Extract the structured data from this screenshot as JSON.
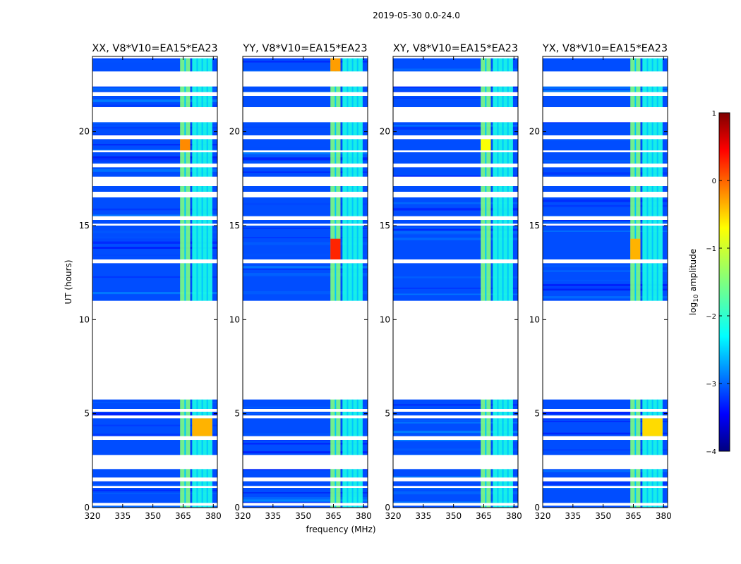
{
  "suptitle": "2019-05-30 0.0-24.0",
  "colors": {
    "background": "#ffffff",
    "axis": "#000000",
    "gap": "#ffffff"
  },
  "chart_data": {
    "type": "heatmap",
    "xlabel": "frequency (MHz)",
    "ylabel": "UT (hours)",
    "xlim": [
      320,
      382
    ],
    "ylim": [
      0,
      24
    ],
    "xticks": [
      320,
      335,
      350,
      365,
      380
    ],
    "yticks": [
      0,
      5,
      10,
      15,
      20
    ],
    "colorbar": {
      "label": "log",
      "label_sub": "10",
      "label_rest": " amplitude",
      "range": [
        -4,
        1
      ],
      "ticks": [
        1,
        0,
        -1,
        -2,
        -3,
        -4
      ],
      "tick_labels": [
        "1",
        "0",
        "−1",
        "−2",
        "−3",
        "−4"
      ],
      "colormap": "jet"
    },
    "data_gaps_ut": [
      [
        23.9,
        24.0
      ],
      [
        22.4,
        23.2
      ],
      [
        21.9,
        22.1
      ],
      [
        20.5,
        21.3
      ],
      [
        19.6,
        19.8
      ],
      [
        18.9,
        19.0
      ],
      [
        18.1,
        18.3
      ],
      [
        17.1,
        17.6
      ],
      [
        16.5,
        16.8
      ],
      [
        15.3,
        15.5
      ],
      [
        15.0,
        15.1
      ],
      [
        13.0,
        13.2
      ],
      [
        11.0,
        5.75
      ],
      [
        5.1,
        5.25
      ],
      [
        4.75,
        4.9
      ],
      [
        3.6,
        3.8
      ],
      [
        2.8,
        2.05
      ],
      [
        1.4,
        1.6
      ],
      [
        1.05,
        1.15
      ],
      [
        0.1,
        0.25
      ]
    ],
    "rfi_bands_mhz": [
      {
        "start": 363.5,
        "end": 368.5,
        "level": -1.5
      },
      {
        "start": 369.5,
        "end": 379.5,
        "level": -2.0
      }
    ],
    "background_level": -3.0,
    "panels": [
      {
        "title": "XX, V8*V10=EA15*EA23",
        "hot_spots": [
          {
            "f0": 363.5,
            "f1": 368.5,
            "t0": 18.9,
            "t1": 19.6,
            "level": -0.3
          },
          {
            "f0": 369.5,
            "f1": 379.5,
            "t0": 3.8,
            "t1": 4.75,
            "level": -0.5
          }
        ]
      },
      {
        "title": "YY, V8*V10=EA15*EA23",
        "hot_spots": [
          {
            "f0": 363.5,
            "f1": 368.5,
            "t0": 13.2,
            "t1": 14.3,
            "level": 0.2
          },
          {
            "f0": 363.5,
            "f1": 368.5,
            "t0": 23.2,
            "t1": 23.9,
            "level": -0.4
          }
        ]
      },
      {
        "title": "XY, V8*V10=EA15*EA23",
        "hot_spots": [
          {
            "f0": 363.5,
            "f1": 368.5,
            "t0": 18.9,
            "t1": 19.6,
            "level": -0.9
          }
        ]
      },
      {
        "title": "YX, V8*V10=EA15*EA23",
        "hot_spots": [
          {
            "f0": 363.5,
            "f1": 368.5,
            "t0": 13.2,
            "t1": 14.3,
            "level": -0.5
          },
          {
            "f0": 369.5,
            "f1": 379.5,
            "t0": 3.8,
            "t1": 4.75,
            "level": -0.7
          }
        ]
      }
    ]
  }
}
